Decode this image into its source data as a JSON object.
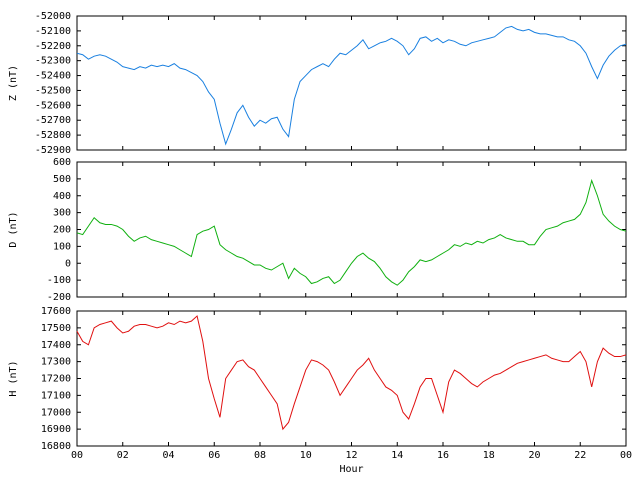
{
  "chart_data": [
    {
      "type": "line",
      "ylabel": "Z (nT)",
      "color": "#1a80e0",
      "xlim": [
        0,
        24
      ],
      "ylim": [
        -52900,
        -52000
      ],
      "yticks": [
        -52000,
        -52100,
        -52200,
        -52300,
        -52400,
        -52500,
        -52600,
        -52700,
        -52800,
        -52900
      ],
      "x": [
        0,
        0.25,
        0.5,
        0.75,
        1,
        1.25,
        1.5,
        1.75,
        2,
        2.25,
        2.5,
        2.75,
        3,
        3.25,
        3.5,
        3.75,
        4,
        4.25,
        4.5,
        4.75,
        5,
        5.25,
        5.5,
        5.75,
        6,
        6.25,
        6.5,
        6.75,
        7,
        7.25,
        7.5,
        7.75,
        8,
        8.25,
        8.5,
        8.75,
        9,
        9.25,
        9.5,
        9.75,
        10,
        10.25,
        10.5,
        10.75,
        11,
        11.25,
        11.5,
        11.75,
        12,
        12.25,
        12.5,
        12.75,
        13,
        13.25,
        13.5,
        13.75,
        14,
        14.25,
        14.5,
        14.75,
        15,
        15.25,
        15.5,
        15.75,
        16,
        16.25,
        16.5,
        16.75,
        17,
        17.25,
        17.5,
        17.75,
        18,
        18.25,
        18.5,
        18.75,
        19,
        19.25,
        19.5,
        19.75,
        20,
        20.25,
        20.5,
        20.75,
        21,
        21.25,
        21.5,
        21.75,
        22,
        22.25,
        22.5,
        22.75,
        23,
        23.25,
        23.5,
        23.75,
        24
      ],
      "values": [
        -52250,
        -52260,
        -52290,
        -52270,
        -52260,
        -52270,
        -52290,
        -52310,
        -52340,
        -52350,
        -52360,
        -52340,
        -52350,
        -52330,
        -52340,
        -52330,
        -52340,
        -52320,
        -52350,
        -52360,
        -52380,
        -52400,
        -52440,
        -52510,
        -52560,
        -52720,
        -52860,
        -52760,
        -52650,
        -52600,
        -52680,
        -52740,
        -52700,
        -52720,
        -52690,
        -52680,
        -52760,
        -52810,
        -52560,
        -52440,
        -52400,
        -52360,
        -52340,
        -52320,
        -52340,
        -52290,
        -52250,
        -52260,
        -52230,
        -52200,
        -52160,
        -52220,
        -52200,
        -52180,
        -52170,
        -52150,
        -52170,
        -52200,
        -52260,
        -52220,
        -52150,
        -52140,
        -52170,
        -52150,
        -52180,
        -52160,
        -52170,
        -52190,
        -52200,
        -52180,
        -52170,
        -52160,
        -52150,
        -52140,
        -52110,
        -52080,
        -52070,
        -52090,
        -52100,
        -52090,
        -52110,
        -52120,
        -52120,
        -52130,
        -52140,
        -52140,
        -52160,
        -52170,
        -52200,
        -52250,
        -52340,
        -52420,
        -52330,
        -52270,
        -52230,
        -52200,
        -52190
      ]
    },
    {
      "type": "line",
      "ylabel": "D (nT)",
      "color": "#10b010",
      "xlim": [
        0,
        24
      ],
      "ylim": [
        -200,
        600
      ],
      "yticks": [
        600,
        500,
        400,
        300,
        200,
        100,
        0,
        -100,
        -200
      ],
      "x": [
        0,
        0.25,
        0.5,
        0.75,
        1,
        1.25,
        1.5,
        1.75,
        2,
        2.25,
        2.5,
        2.75,
        3,
        3.25,
        3.5,
        3.75,
        4,
        4.25,
        4.5,
        4.75,
        5,
        5.25,
        5.5,
        5.75,
        6,
        6.25,
        6.5,
        6.75,
        7,
        7.25,
        7.5,
        7.75,
        8,
        8.25,
        8.5,
        8.75,
        9,
        9.25,
        9.5,
        9.75,
        10,
        10.25,
        10.5,
        10.75,
        11,
        11.25,
        11.5,
        11.75,
        12,
        12.25,
        12.5,
        12.75,
        13,
        13.25,
        13.5,
        13.75,
        14,
        14.25,
        14.5,
        14.75,
        15,
        15.25,
        15.5,
        15.75,
        16,
        16.25,
        16.5,
        16.75,
        17,
        17.25,
        17.5,
        17.75,
        18,
        18.25,
        18.5,
        18.75,
        19,
        19.25,
        19.5,
        19.75,
        20,
        20.25,
        20.5,
        20.75,
        21,
        21.25,
        21.5,
        21.75,
        22,
        22.25,
        22.5,
        22.75,
        23,
        23.25,
        23.5,
        23.75,
        24
      ],
      "values": [
        180,
        170,
        220,
        270,
        240,
        230,
        230,
        220,
        200,
        160,
        130,
        150,
        160,
        140,
        130,
        120,
        110,
        100,
        80,
        60,
        40,
        170,
        190,
        200,
        220,
        110,
        80,
        60,
        40,
        30,
        10,
        -10,
        -10,
        -30,
        -40,
        -20,
        0,
        -90,
        -30,
        -60,
        -80,
        -120,
        -110,
        -90,
        -80,
        -120,
        -100,
        -50,
        0,
        40,
        60,
        30,
        10,
        -30,
        -80,
        -110,
        -130,
        -100,
        -50,
        -20,
        20,
        10,
        20,
        40,
        60,
        80,
        110,
        100,
        120,
        110,
        130,
        120,
        140,
        150,
        170,
        150,
        140,
        130,
        130,
        110,
        110,
        160,
        200,
        210,
        220,
        240,
        250,
        260,
        290,
        360,
        490,
        400,
        290,
        250,
        220,
        200,
        190
      ]
    },
    {
      "type": "line",
      "ylabel": "H (nT)",
      "color": "#e01010",
      "xlim": [
        0,
        24
      ],
      "xlabel": "Hour",
      "xticks": [
        {
          "value": 0,
          "label": "00"
        },
        {
          "value": 2,
          "label": "02"
        },
        {
          "value": 4,
          "label": "04"
        },
        {
          "value": 6,
          "label": "06"
        },
        {
          "value": 8,
          "label": "08"
        },
        10,
        12,
        14,
        16,
        18,
        20,
        22,
        {
          "value": 24,
          "label": "00"
        }
      ],
      "ylim": [
        16800,
        17600
      ],
      "yticks": [
        17600,
        17500,
        17400,
        17300,
        17200,
        17100,
        17000,
        16900,
        16800
      ],
      "x": [
        0,
        0.25,
        0.5,
        0.75,
        1,
        1.25,
        1.5,
        1.75,
        2,
        2.25,
        2.5,
        2.75,
        3,
        3.25,
        3.5,
        3.75,
        4,
        4.25,
        4.5,
        4.75,
        5,
        5.25,
        5.5,
        5.75,
        6,
        6.25,
        6.5,
        6.75,
        7,
        7.25,
        7.5,
        7.75,
        8,
        8.25,
        8.5,
        8.75,
        9,
        9.25,
        9.5,
        9.75,
        10,
        10.25,
        10.5,
        10.75,
        11,
        11.25,
        11.5,
        11.75,
        12,
        12.25,
        12.5,
        12.75,
        13,
        13.25,
        13.5,
        13.75,
        14,
        14.25,
        14.5,
        14.75,
        15,
        15.25,
        15.5,
        15.75,
        16,
        16.25,
        16.5,
        16.75,
        17,
        17.25,
        17.5,
        17.75,
        18,
        18.25,
        18.5,
        18.75,
        19,
        19.25,
        19.5,
        19.75,
        20,
        20.25,
        20.5,
        20.75,
        21,
        21.25,
        21.5,
        21.75,
        22,
        22.25,
        22.5,
        22.75,
        23,
        23.25,
        23.5,
        23.75,
        24
      ],
      "values": [
        17480,
        17420,
        17400,
        17500,
        17520,
        17530,
        17540,
        17500,
        17470,
        17480,
        17510,
        17520,
        17520,
        17510,
        17500,
        17510,
        17530,
        17520,
        17540,
        17530,
        17540,
        17570,
        17420,
        17200,
        17080,
        16970,
        17200,
        17250,
        17300,
        17310,
        17270,
        17250,
        17200,
        17150,
        17100,
        17050,
        16900,
        16940,
        17050,
        17150,
        17250,
        17310,
        17300,
        17280,
        17250,
        17180,
        17100,
        17150,
        17200,
        17250,
        17280,
        17320,
        17250,
        17200,
        17150,
        17130,
        17100,
        17000,
        16960,
        17050,
        17150,
        17200,
        17200,
        17100,
        17000,
        17180,
        17250,
        17230,
        17200,
        17170,
        17150,
        17180,
        17200,
        17220,
        17230,
        17250,
        17270,
        17290,
        17300,
        17310,
        17320,
        17330,
        17340,
        17320,
        17310,
        17300,
        17300,
        17330,
        17360,
        17300,
        17150,
        17300,
        17380,
        17350,
        17330,
        17330,
        17340
      ]
    }
  ]
}
